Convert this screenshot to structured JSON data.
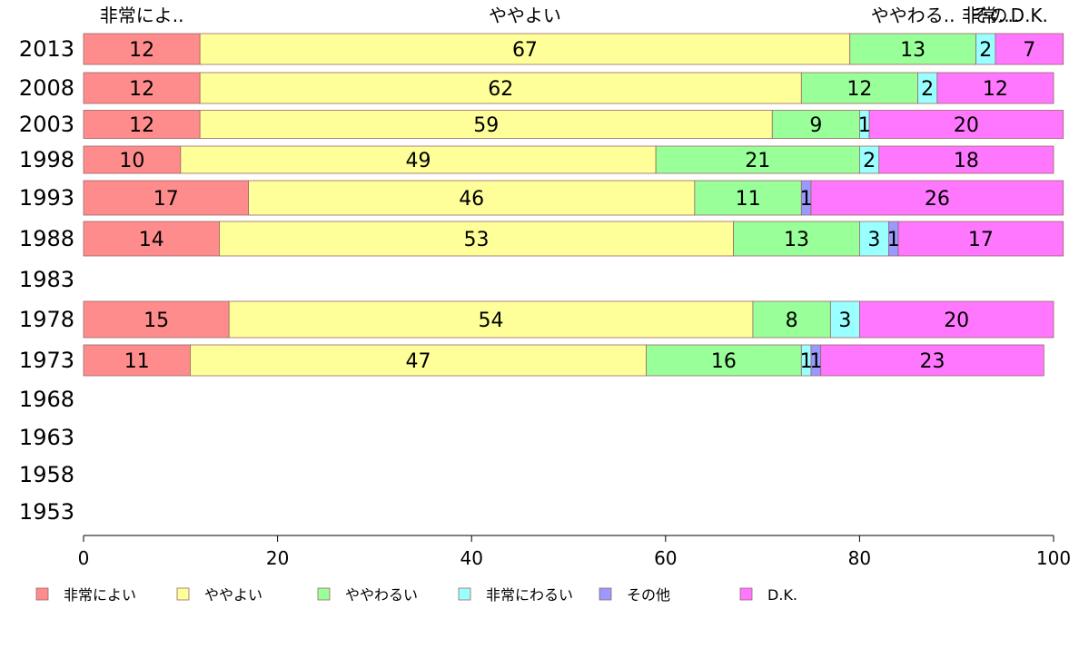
{
  "chart_data": {
    "type": "bar",
    "orientation": "horizontal",
    "stacked": true,
    "categories": [
      "2013",
      "2008",
      "2003",
      "1998",
      "1993",
      "1988",
      "1983",
      "1978",
      "1973",
      "1968",
      "1963",
      "1958",
      "1953"
    ],
    "series": [
      {
        "name": "非常によい",
        "color": "#ff8c8c",
        "values": [
          12,
          12,
          12,
          10,
          17,
          14,
          null,
          15,
          11,
          null,
          null,
          null,
          null
        ]
      },
      {
        "name": "ややよい",
        "color": "#ffff99",
        "values": [
          67,
          62,
          59,
          49,
          46,
          53,
          null,
          54,
          47,
          null,
          null,
          null,
          null
        ]
      },
      {
        "name": "ややわるい",
        "color": "#99ff99",
        "values": [
          13,
          12,
          9,
          21,
          11,
          13,
          null,
          8,
          16,
          null,
          null,
          null,
          null
        ]
      },
      {
        "name": "非常にわるい",
        "color": "#99ffff",
        "values": [
          2,
          2,
          1,
          2,
          0,
          3,
          null,
          3,
          1,
          null,
          null,
          null,
          null
        ]
      },
      {
        "name": "その他",
        "color": "#9999ff",
        "values": [
          0,
          0,
          0,
          0,
          1,
          1,
          null,
          0,
          1,
          null,
          null,
          null,
          null
        ]
      },
      {
        "name": "D.K.",
        "color": "#ff77ff",
        "values": [
          7,
          12,
          20,
          18,
          26,
          17,
          null,
          20,
          23,
          null,
          null,
          null,
          null
        ]
      }
    ],
    "top_labels": [
      "非常によ..",
      "ややよい",
      "ややわる..",
      "非常..",
      "その..",
      "D.K."
    ],
    "xticks": [
      "0",
      "20",
      "40",
      "60",
      "80",
      "100"
    ],
    "xlim": [
      0,
      100
    ],
    "grid": false,
    "legend_position": "bottom"
  }
}
